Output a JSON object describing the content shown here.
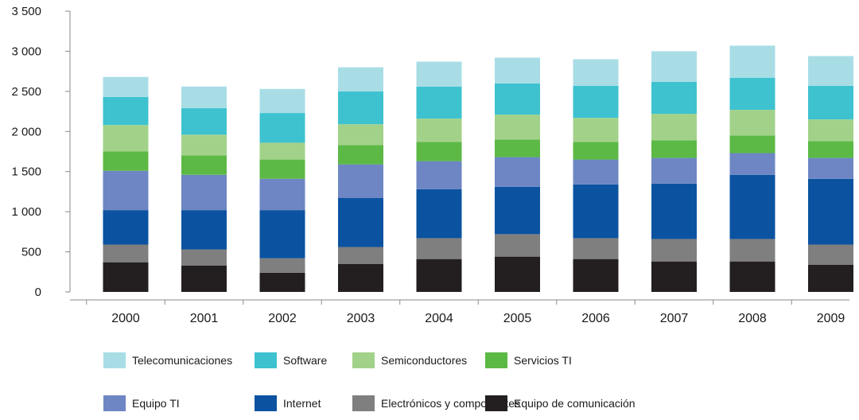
{
  "chart_data": {
    "type": "bar",
    "stacked": true,
    "title": "",
    "xlabel": "",
    "ylabel": "",
    "ylim": [
      0,
      3500
    ],
    "y_ticks": [
      "0",
      "500",
      "1 000",
      "1 500",
      "2 000",
      "2 500",
      "3 000",
      "3 500"
    ],
    "grid": false,
    "legend_position": "bottom",
    "categories": [
      "2000",
      "2001",
      "2002",
      "2003",
      "2004",
      "2005",
      "2006",
      "2007",
      "2008",
      "2009"
    ],
    "series": [
      {
        "name": "Equipo de comunicación",
        "color": "#231f20",
        "values": [
          370,
          330,
          240,
          350,
          410,
          440,
          410,
          380,
          380,
          340
        ]
      },
      {
        "name": "Electrónicos y componentes",
        "color": "#7f7f80",
        "values": [
          220,
          200,
          180,
          210,
          260,
          280,
          260,
          280,
          280,
          250
        ]
      },
      {
        "name": "Internet",
        "color": "#0b53a0",
        "values": [
          430,
          490,
          600,
          610,
          610,
          590,
          670,
          690,
          800,
          820
        ]
      },
      {
        "name": "Equipo TI",
        "color": "#6e86c4",
        "values": [
          490,
          440,
          390,
          420,
          350,
          370,
          310,
          320,
          270,
          260
        ]
      },
      {
        "name": "Servicios TI",
        "color": "#5cb946",
        "values": [
          240,
          240,
          240,
          240,
          240,
          220,
          220,
          220,
          220,
          210
        ]
      },
      {
        "name": "Semiconductores",
        "color": "#a2d28a",
        "values": [
          330,
          260,
          210,
          260,
          290,
          310,
          300,
          330,
          320,
          270
        ]
      },
      {
        "name": "Software",
        "color": "#3ec2cf",
        "values": [
          350,
          330,
          370,
          410,
          400,
          390,
          400,
          400,
          400,
          420
        ]
      },
      {
        "name": "Telecomunicaciones",
        "color": "#a8dde6",
        "values": [
          250,
          270,
          300,
          300,
          310,
          320,
          330,
          380,
          400,
          370
        ]
      }
    ],
    "legend_order": [
      "Telecomunicaciones",
      "Software",
      "Semiconductores",
      "Servicios TI",
      "Equipo TI",
      "Internet",
      "Electrónicos y componentes",
      "Equipo de comunicación"
    ]
  }
}
